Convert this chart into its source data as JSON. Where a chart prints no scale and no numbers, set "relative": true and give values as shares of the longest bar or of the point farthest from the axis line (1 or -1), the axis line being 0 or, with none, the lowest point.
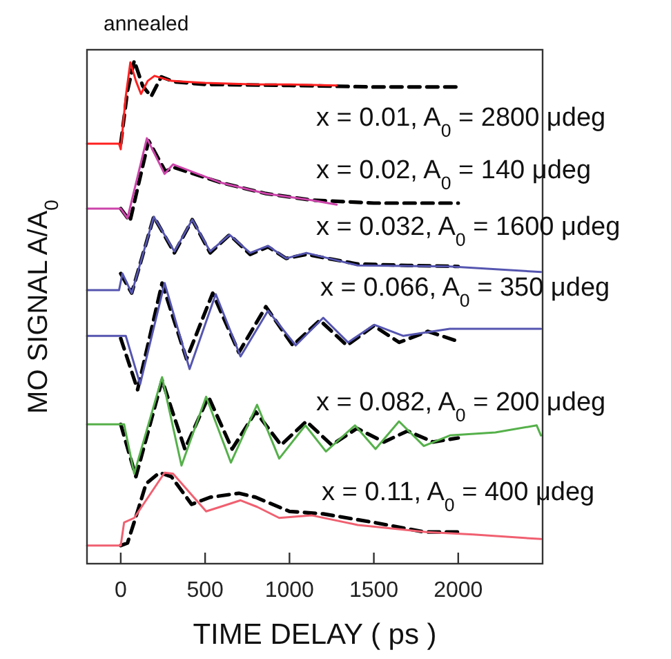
{
  "chart_data": {
    "type": "line",
    "title": "annealed",
    "xlabel": "TIME DELAY ( ps )",
    "ylabel": "MO SIGNAL A/A$_{0}$",
    "relative": true,
    "xlim": [
      -200,
      2500
    ],
    "xticks": [
      0,
      500,
      1000,
      1500,
      2000
    ],
    "grid": false,
    "series": [
      {
        "name": "x = 0.01, A$_{0}$ = 2800 μdeg",
        "color": "#ff2020",
        "line_style": "solid",
        "x": [
          -200,
          -10,
          0,
          30,
          57,
          90,
          120,
          160,
          200,
          300,
          500,
          800,
          1000,
          1280
        ],
        "values": [
          0.835,
          0.835,
          0.824,
          0.93,
          0.997,
          0.96,
          0.934,
          0.96,
          0.97,
          0.96,
          0.956,
          0.953,
          0.953,
          0.951
        ]
      },
      {
        "color": "#000000",
        "line_style": "dashed",
        "x": [
          0,
          40,
          80,
          130,
          180,
          240,
          320,
          500,
          1000,
          1500,
          2000
        ],
        "values": [
          0.835,
          0.94,
          1.0,
          0.95,
          0.929,
          0.968,
          0.958,
          0.953,
          0.951,
          0.948,
          0.948
        ]
      },
      {
        "name": "x = 0.02, A$_{0}$ = 140 μdeg",
        "color": "#cc44aa",
        "line_style": "solid",
        "x": [
          -200,
          0,
          40,
          155,
          260,
          310,
          590,
          860,
          1130,
          1280
        ],
        "values": [
          0.706,
          0.706,
          0.687,
          0.846,
          0.775,
          0.794,
          0.758,
          0.736,
          0.723,
          0.714
        ]
      },
      {
        "color": "#000000",
        "line_style": "dashed",
        "x": [
          0,
          55,
          165,
          265,
          315,
          590,
          860,
          1130,
          1500,
          2000
        ],
        "values": [
          0.706,
          0.681,
          0.841,
          0.78,
          0.788,
          0.758,
          0.736,
          0.723,
          0.717,
          0.717
        ]
      },
      {
        "name": "x = 0.032, A$_{0}$ = 1600 μdeg",
        "color": "#5555b0",
        "line_style": "solid",
        "x": [
          -200,
          -10,
          10,
          65,
          196,
          318,
          424,
          530,
          645,
          767,
          873,
          980,
          1100,
          1404,
          1950,
          2490
        ],
        "values": [
          0.544,
          0.544,
          0.577,
          0.538,
          0.69,
          0.621,
          0.684,
          0.621,
          0.654,
          0.618,
          0.632,
          0.607,
          0.618,
          0.593,
          0.591,
          0.58
        ]
      },
      {
        "color": "#000000",
        "line_style": "dashed",
        "x": [
          0,
          65,
          196,
          318,
          424,
          530,
          645,
          767,
          873,
          980,
          1100,
          1400,
          1700,
          2000
        ],
        "values": [
          0.577,
          0.538,
          0.69,
          0.618,
          0.684,
          0.618,
          0.654,
          0.615,
          0.63,
          0.607,
          0.615,
          0.596,
          0.593,
          0.591
        ]
      },
      {
        "name": "x = 0.066, A$_{0}$ = 350 μdeg",
        "color": "#5555b0",
        "line_style": "solid",
        "x": [
          -200,
          30,
          115,
          260,
          408,
          563,
          710,
          873,
          1037,
          1200,
          1347,
          1502,
          1673,
          1950,
          2490
        ],
        "values": [
          0.453,
          0.453,
          0.357,
          0.558,
          0.387,
          0.536,
          0.412,
          0.503,
          0.434,
          0.489,
          0.44,
          0.475,
          0.453,
          0.467,
          0.467
        ]
      },
      {
        "color": "#000000",
        "line_style": "dashed",
        "x": [
          0,
          100,
          245,
          390,
          545,
          700,
          860,
          1020,
          1180,
          1340,
          1500,
          1650,
          1820,
          2000
        ],
        "values": [
          0.448,
          0.346,
          0.558,
          0.407,
          0.538,
          0.42,
          0.511,
          0.434,
          0.484,
          0.434,
          0.473,
          0.44,
          0.462,
          0.442
        ]
      },
      {
        "name": "x = 0.082, A$_{0}$ = 200 μdeg",
        "color": "#55b04a",
        "line_style": "solid",
        "x": [
          -200,
          20,
          80,
          245,
          360,
          506,
          653,
          808,
          939,
          1094,
          1216,
          1388,
          1510,
          1649,
          1796,
          1951,
          2220,
          2465,
          2490
        ],
        "values": [
          0.277,
          0.277,
          0.179,
          0.371,
          0.195,
          0.332,
          0.201,
          0.316,
          0.209,
          0.275,
          0.223,
          0.275,
          0.228,
          0.283,
          0.234,
          0.255,
          0.261,
          0.275,
          0.255
        ]
      },
      {
        "color": "#000000",
        "line_style": "dashed",
        "x": [
          0,
          90,
          245,
          380,
          520,
          660,
          800,
          950,
          1100,
          1250,
          1400,
          1560,
          1700,
          1850,
          2000
        ],
        "values": [
          0.277,
          0.173,
          0.365,
          0.228,
          0.332,
          0.228,
          0.302,
          0.236,
          0.283,
          0.236,
          0.269,
          0.242,
          0.264,
          0.242,
          0.25
        ]
      },
      {
        "name": "x = 0.11, A$_{0}$ = 400 μdeg",
        "color": "#f06070",
        "line_style": "solid",
        "x": [
          -200,
          0,
          20,
          80,
          260,
          310,
          506,
          590,
          710,
          808,
          939,
          1133,
          1404,
          1812,
          2089,
          2490
        ],
        "values": [
          0.036,
          0.036,
          0.082,
          0.091,
          0.181,
          0.179,
          0.104,
          0.113,
          0.126,
          0.113,
          0.091,
          0.096,
          0.077,
          0.063,
          0.058,
          0.049
        ]
      },
      {
        "color": "#000000",
        "line_style": "dashed",
        "x": [
          0,
          40,
          100,
          150,
          230,
          300,
          420,
          530,
          700,
          800,
          1000,
          1200,
          1500,
          1800,
          2000
        ],
        "values": [
          0.036,
          0.041,
          0.104,
          0.159,
          0.181,
          0.173,
          0.118,
          0.132,
          0.14,
          0.132,
          0.104,
          0.099,
          0.082,
          0.063,
          0.063
        ]
      }
    ]
  }
}
